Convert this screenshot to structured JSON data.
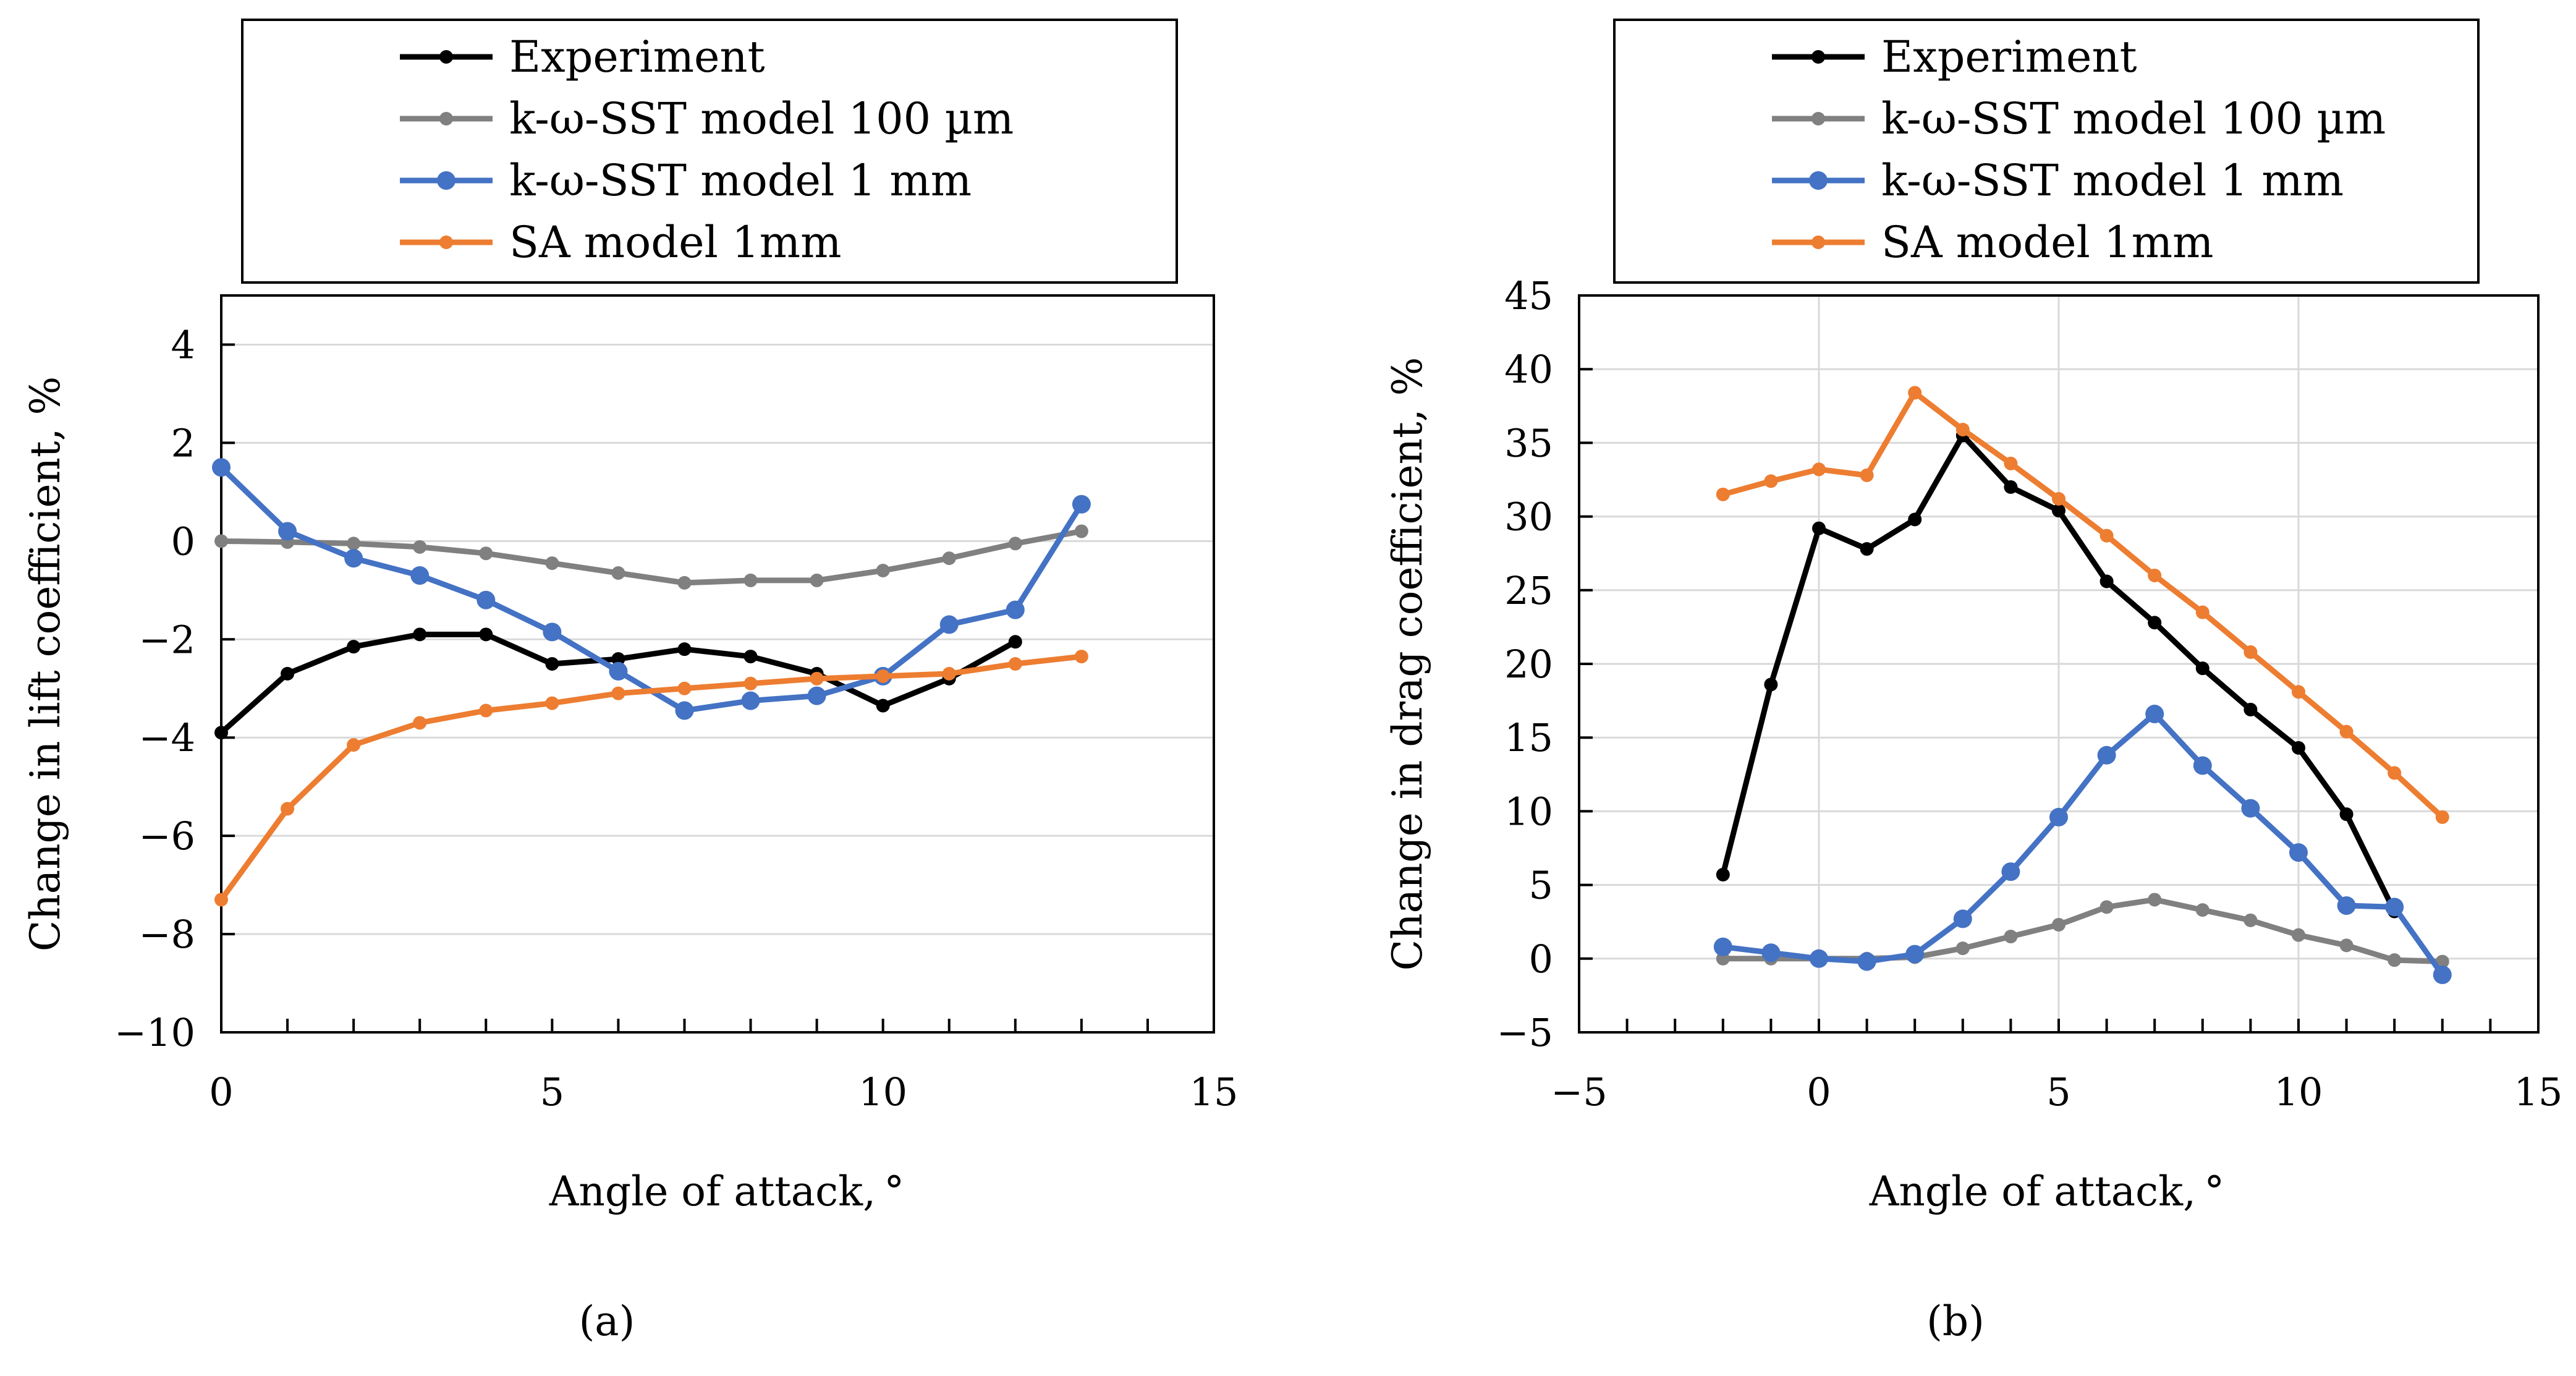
{
  "colors": {
    "experiment": "#000000",
    "sst100": "#808080",
    "sst1mm": "#4472c4",
    "sa": "#ed7d31",
    "grid": "#d9d9d9",
    "axis": "#000000"
  },
  "chart_data": [
    {
      "type": "line",
      "panel_label": "(a)",
      "xlabel": "Angle of attack, °",
      "ylabel": "Change in lift coefficient, %",
      "xlim": [
        0,
        15
      ],
      "ylim": [
        -10,
        5
      ],
      "xticks": [
        0,
        5,
        10,
        15
      ],
      "yticks": [
        -10,
        -8,
        -6,
        -4,
        -2,
        0,
        2,
        4
      ],
      "xtick_labels": [
        "0",
        "5",
        "10",
        "15"
      ],
      "ytick_labels": [
        "−10",
        "−8",
        "−6",
        "−4",
        "−2",
        "0",
        "2",
        "4"
      ],
      "grid": "horizontal",
      "legend_position": "top",
      "series": [
        {
          "name": "Experiment",
          "color_key": "experiment",
          "x": [
            0,
            1,
            2,
            3,
            4,
            5,
            6,
            7,
            8,
            9,
            10,
            11,
            12
          ],
          "y": [
            -3.9,
            -2.7,
            -2.15,
            -1.9,
            -1.9,
            -2.5,
            -2.4,
            -2.2,
            -2.35,
            -2.7,
            -3.35,
            -2.8,
            -2.05
          ]
        },
        {
          "name": "k-ω-SST model 100 µm",
          "color_key": "sst100",
          "x": [
            0,
            1,
            2,
            3,
            4,
            5,
            6,
            7,
            8,
            9,
            10,
            11,
            12,
            13
          ],
          "y": [
            0,
            -0.02,
            -0.05,
            -0.12,
            -0.25,
            -0.45,
            -0.65,
            -0.85,
            -0.8,
            -0.8,
            -0.6,
            -0.35,
            -0.05,
            0.2
          ]
        },
        {
          "name": "k-ω-SST model 1 mm",
          "color_key": "sst1mm",
          "x": [
            0,
            1,
            2,
            3,
            4,
            5,
            6,
            7,
            8,
            9,
            10,
            11,
            12,
            13
          ],
          "y": [
            1.5,
            0.2,
            -0.35,
            -0.7,
            -1.2,
            -1.85,
            -2.65,
            -3.45,
            -3.25,
            -3.15,
            -2.75,
            -1.7,
            -1.4,
            0.75
          ]
        },
        {
          "name": "SA model 1mm",
          "color_key": "sa",
          "x": [
            0,
            1,
            2,
            3,
            4,
            5,
            6,
            7,
            8,
            9,
            10,
            11,
            12,
            13
          ],
          "y": [
            -7.3,
            -5.45,
            -4.15,
            -3.7,
            -3.45,
            -3.3,
            -3.1,
            -3.0,
            -2.9,
            -2.8,
            -2.75,
            -2.7,
            -2.5,
            -2.35
          ]
        }
      ]
    },
    {
      "type": "line",
      "panel_label": "(b)",
      "xlabel": "Angle of attack, °",
      "ylabel": "Change in drag coefficient, %",
      "xlim": [
        -5,
        15
      ],
      "ylim": [
        -5,
        45
      ],
      "xticks": [
        -5,
        0,
        5,
        10,
        15
      ],
      "yticks": [
        -5,
        0,
        5,
        10,
        15,
        20,
        25,
        30,
        35,
        40,
        45
      ],
      "xtick_labels": [
        "−5",
        "0",
        "5",
        "10",
        "15"
      ],
      "ytick_labels": [
        "−5",
        "0",
        "5",
        "10",
        "15",
        "20",
        "25",
        "30",
        "35",
        "40",
        "45"
      ],
      "grid": "both",
      "legend_position": "top",
      "series": [
        {
          "name": "Experiment",
          "color_key": "experiment",
          "x": [
            -2,
            -1,
            0,
            1,
            2,
            3,
            4,
            5,
            6,
            7,
            8,
            9,
            10,
            11,
            12
          ],
          "y": [
            5.7,
            18.6,
            29.2,
            27.8,
            29.8,
            35.5,
            32.0,
            30.4,
            25.6,
            22.8,
            19.7,
            16.9,
            14.3,
            9.8,
            3.2
          ]
        },
        {
          "name": "k-ω-SST model 100 µm",
          "color_key": "sst100",
          "x": [
            -2,
            -1,
            0,
            1,
            2,
            3,
            4,
            5,
            6,
            7,
            8,
            9,
            10,
            11,
            12,
            13
          ],
          "y": [
            0.0,
            0.0,
            0.0,
            0.0,
            0.1,
            0.7,
            1.5,
            2.3,
            3.5,
            4.0,
            3.3,
            2.6,
            1.6,
            0.9,
            -0.1,
            -0.2
          ]
        },
        {
          "name": "k-ω-SST model 1 mm",
          "color_key": "sst1mm",
          "x": [
            -2,
            -1,
            0,
            1,
            2,
            3,
            4,
            5,
            6,
            7,
            8,
            9,
            10,
            11,
            12,
            13
          ],
          "y": [
            0.8,
            0.4,
            0.0,
            -0.2,
            0.3,
            2.7,
            5.9,
            9.6,
            13.8,
            16.6,
            13.1,
            10.2,
            7.2,
            3.6,
            3.5,
            -1.1
          ]
        },
        {
          "name": "SA model 1mm",
          "color_key": "sa",
          "x": [
            -2,
            -1,
            0,
            1,
            2,
            3,
            4,
            5,
            6,
            7,
            8,
            9,
            10,
            11,
            12,
            13
          ],
          "y": [
            31.5,
            32.4,
            33.2,
            32.8,
            38.4,
            35.9,
            33.6,
            31.2,
            28.7,
            26.0,
            23.5,
            20.8,
            18.1,
            15.4,
            12.6,
            9.6
          ]
        }
      ]
    }
  ]
}
